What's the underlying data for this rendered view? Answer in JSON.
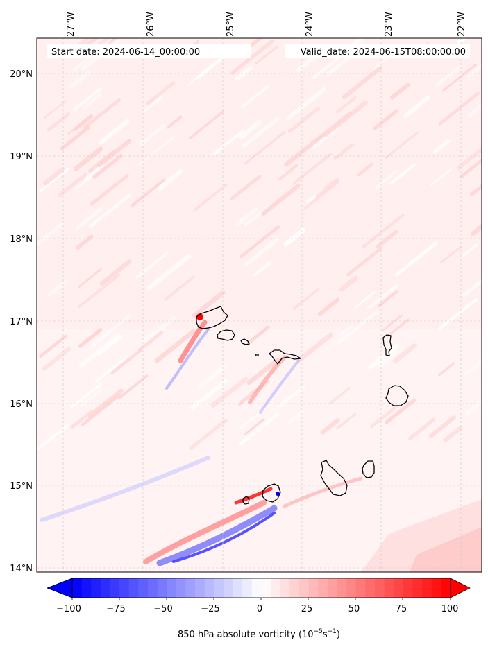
{
  "map": {
    "start_date_label": "Start date: 2024-06-14_00:00:00",
    "valid_date_label": "Valid_date: 2024-06-15T08:00:00.00",
    "longitude_ticks": [
      "27°W",
      "26°W",
      "25°W",
      "24°W",
      "23°W",
      "22°W"
    ],
    "latitude_ticks": [
      "20°N",
      "19°N",
      "18°N",
      "17°N",
      "16°N",
      "15°N",
      "14°N"
    ]
  },
  "colorbar": {
    "ticks": [
      "−100",
      "−75",
      "−50",
      "−25",
      "0",
      "25",
      "50",
      "75",
      "100"
    ],
    "label_main": "850 hPa absolute vorticity (10",
    "label_sup1": "−5",
    "label_mid": "s",
    "label_sup2": "−1",
    "label_end": ")",
    "min_color": "#0000ff",
    "mid_color": "#ffffff",
    "max_color": "#ff0000"
  },
  "colors": {
    "background_field": "#fff1f1",
    "coastline": "#000000",
    "gridline": "#c8c8c8"
  }
}
